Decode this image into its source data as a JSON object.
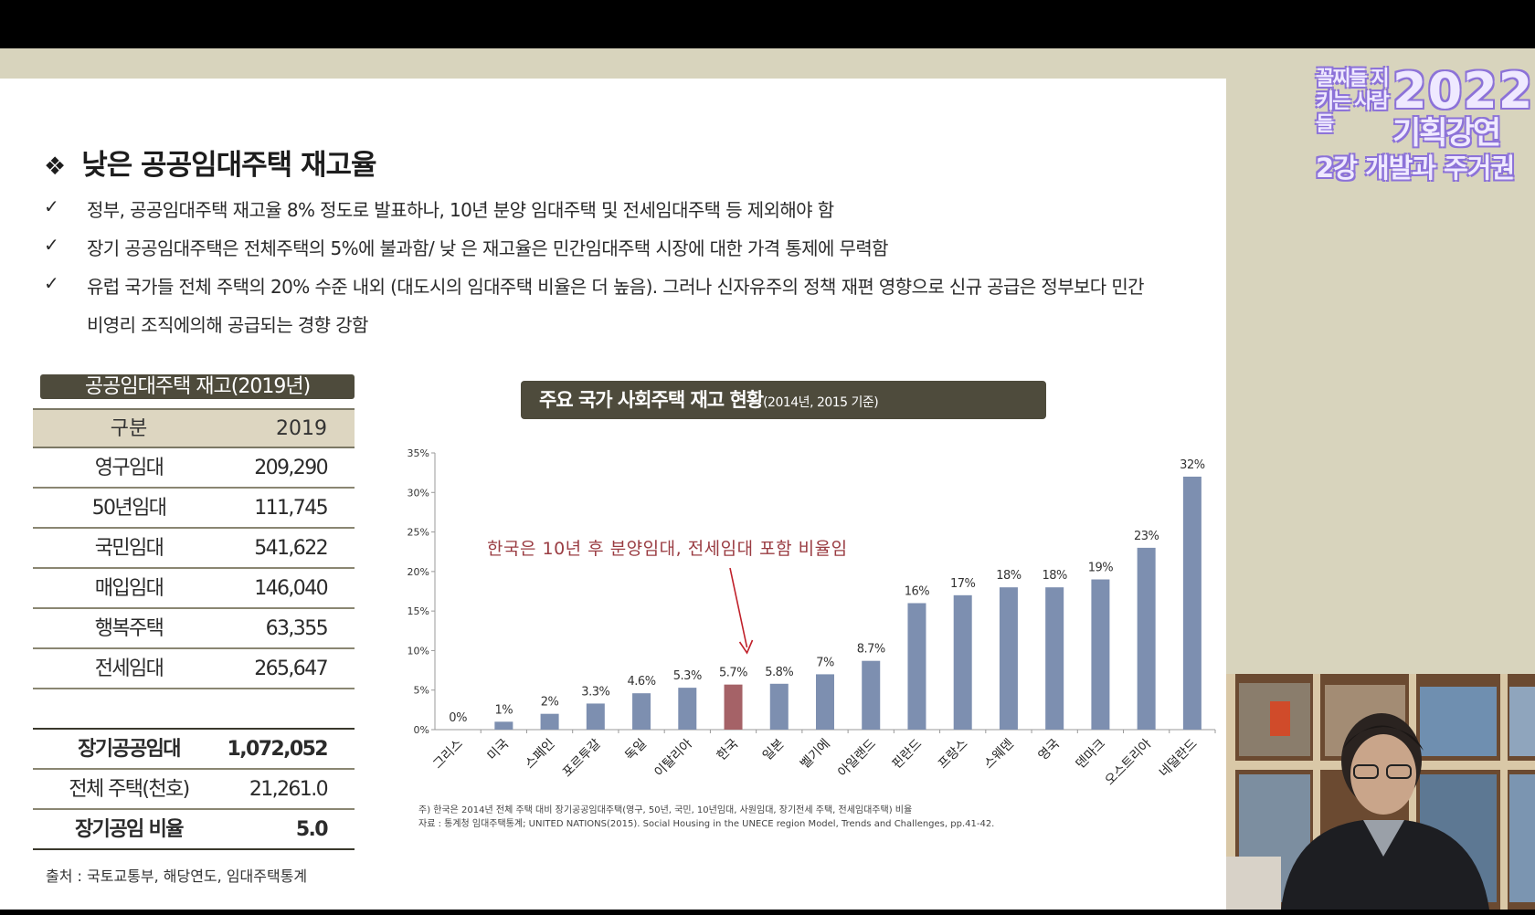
{
  "logo": {
    "left": "꼴찌들 지키는 사람들",
    "year": "2022",
    "sub": "기획강연",
    "line3": "2강 개발과 주거권"
  },
  "slide": {
    "title": "낮은 공공임대주택 재고율",
    "bullets": [
      "정부, 공공임대주택 재고율 8% 정도로 발표하나, 10년 분양 임대주택 및 전세임대주택 등 제외해야 함",
      "장기 공공임대주택은 전체주택의 5%에 불과함/ 낮 은 재고율은 민간임대주택 시장에 대한 가격 통제에 무력함",
      "유럽 국가들 전체 주택의 20% 수준 내외 (대도시의 임대주택 비율은 더 높음). 그러나 신자유주의 정책 재편 영향으로 신규 공급은 정부보다 민간"
    ],
    "bullet3_cont": "비영리 조직에의해 공급되는 경향 강함",
    "check": "✓",
    "diamond": "❖"
  },
  "table": {
    "title": "공공임대주택 재고(2019년)",
    "head": [
      "구분",
      "2019"
    ],
    "rows": [
      [
        "영구임대",
        "209,290"
      ],
      [
        "50년임대",
        "111,745"
      ],
      [
        "국민임대",
        "541,622"
      ],
      [
        "매입임대",
        "146,040"
      ],
      [
        "행복주택",
        "63,355"
      ],
      [
        "전세임대",
        "265,647"
      ],
      [
        "",
        ""
      ],
      [
        "장기공공임대",
        "1,072,052"
      ],
      [
        "전체 주택(천호)",
        "21,261.0"
      ],
      [
        "장기공임 비율",
        "5.0"
      ]
    ],
    "source": "출처 : 국토교통부, 해당연도, 임대주택통계"
  },
  "chart_data": {
    "type": "bar",
    "title": "주요 국가 사회주택 재고 현황",
    "title_small": "(2014년, 2015 기준)",
    "categories": [
      "그리스",
      "미국",
      "스페인",
      "포르투갈",
      "독일",
      "이탈리아",
      "한국",
      "일본",
      "벨기에",
      "아일랜드",
      "핀란드",
      "프랑스",
      "스웨덴",
      "영국",
      "덴마크",
      "오스트리아",
      "네덜란드"
    ],
    "values": [
      0,
      1,
      2,
      3.3,
      4.6,
      5.3,
      5.7,
      5.8,
      7,
      8.7,
      16,
      17,
      18,
      18,
      19,
      23,
      32
    ],
    "data_labels": [
      "0%",
      "1%",
      "2%",
      "3.3%",
      "4.6%",
      "5.3%",
      "5.7%",
      "5.8%",
      "7%",
      "8.7%",
      "16%",
      "17%",
      "18%",
      "18%",
      "19%",
      "23%",
      "32%"
    ],
    "highlight": "한국",
    "ylim": [
      0,
      35
    ],
    "yticks": [
      "0%",
      "5%",
      "10%",
      "15%",
      "20%",
      "25%",
      "30%",
      "35%"
    ],
    "colors": {
      "bar": "#7d8fb0",
      "highlight": "#a56267",
      "arrow": "#c0202a"
    },
    "annotation": "한국은 10년 후 분양임대, 전세임대 포함 비율임",
    "footnotes": [
      "주) 한국은 2014년 전체 주택 대비 장기공공임대주택(영구, 50년, 국민, 10년임대, 사원임대, 장기전세 주택, 전세임대주택) 비율",
      "자료 : 통계청 임대주택통계; UNITED NATIONS(2015). Social Housing in the UNECE region Model, Trends and Challenges, pp.41-42."
    ]
  }
}
